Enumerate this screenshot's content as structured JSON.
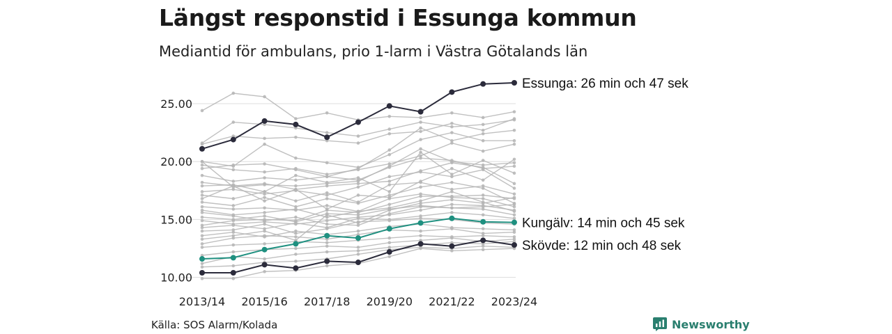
{
  "header": {
    "title": "Längst responstid i Essunga kommun",
    "subtitle": "Mediantid för ambulans, prio 1-larm i Västra Götalands län"
  },
  "footer": {
    "source": "Källa: SOS Alarm/Kolada",
    "brand_name": "Newsworthy",
    "brand_icon": "newsworthy-logo-icon",
    "brand_color": "#2a7f6f"
  },
  "chart_data": {
    "type": "line",
    "x": [
      "2013/14",
      "2014/15",
      "2015/16",
      "2016/17",
      "2017/18",
      "2018/19",
      "2019/20",
      "2020/21",
      "2021/22",
      "2022/23",
      "2023/24"
    ],
    "xticks": [
      "2013/14",
      "2015/16",
      "2017/18",
      "2019/20",
      "2021/22",
      "2023/24"
    ],
    "yticks": [
      "10.00",
      "15.00",
      "20.00",
      "25.00"
    ],
    "ylim": [
      9.8,
      26.8
    ],
    "grid": "horizontal",
    "highlighted": [
      {
        "name": "Essunga",
        "color": "#2b2b3b",
        "label": "Essunga: 26 min och 47 sek",
        "values": [
          21.1,
          21.9,
          23.5,
          23.2,
          22.1,
          23.4,
          24.8,
          24.3,
          26.0,
          26.7,
          26.8
        ]
      },
      {
        "name": "Kungälv",
        "color": "#1f9080",
        "label": "Kungälv: 14 min och 45 sek",
        "values": [
          11.6,
          11.7,
          12.4,
          12.9,
          13.6,
          13.4,
          14.2,
          14.7,
          15.1,
          14.8,
          14.75
        ]
      },
      {
        "name": "Skövde",
        "color": "#2b2b3b",
        "label": "Skövde: 12 min och 48 sek",
        "values": [
          10.4,
          10.4,
          11.1,
          10.8,
          11.4,
          11.3,
          12.2,
          12.9,
          12.7,
          13.2,
          12.8
        ]
      }
    ],
    "background_color": "#b5b5b5",
    "background_series": [
      [
        24.4,
        25.9,
        25.6,
        23.7,
        24.2,
        23.6,
        23.9,
        23.8,
        24.2,
        23.8,
        24.3
      ],
      [
        21.6,
        23.4,
        23.2,
        22.9,
        22.5,
        22.2,
        22.8,
        23.4,
        23.0,
        23.2,
        23.6
      ],
      [
        21.5,
        22.2,
        22.0,
        22.1,
        21.8,
        21.6,
        22.4,
        22.6,
        23.3,
        22.7,
        23.7
      ],
      [
        20.0,
        19.6,
        21.5,
        20.3,
        19.9,
        19.5,
        20.6,
        21.9,
        22.5,
        21.8,
        21.8
      ],
      [
        19.4,
        19.7,
        19.8,
        19.3,
        18.7,
        19.4,
        21.0,
        22.9,
        21.8,
        22.4,
        22.7
      ],
      [
        19.7,
        19.3,
        19.1,
        19.4,
        18.9,
        19.3,
        19.8,
        20.5,
        21.6,
        20.9,
        21.5
      ],
      [
        18.8,
        18.3,
        18.6,
        18.4,
        18.7,
        18.4,
        19.5,
        20.3,
        20.1,
        19.4,
        19.6
      ],
      [
        18.2,
        17.9,
        18.1,
        17.6,
        17.9,
        18.1,
        18.3,
        19.2,
        19.9,
        19.5,
        18.1
      ],
      [
        17.4,
        17.6,
        17.2,
        17.5,
        17.1,
        17.8,
        18.7,
        19.1,
        18.7,
        19.3,
        17.7
      ],
      [
        17.1,
        16.8,
        17.4,
        16.6,
        17.3,
        16.5,
        18.0,
        18.2,
        17.6,
        17.9,
        17.2
      ],
      [
        16.5,
        16.2,
        16.9,
        16.1,
        16.8,
        16.4,
        17.1,
        17.8,
        18.2,
        17.7,
        16.4
      ],
      [
        16.1,
        15.9,
        16.0,
        15.8,
        16.2,
        15.7,
        16.8,
        17.2,
        16.9,
        16.8,
        16.1
      ],
      [
        15.8,
        15.4,
        15.6,
        15.9,
        15.2,
        15.7,
        16.0,
        16.6,
        17.4,
        16.5,
        15.7
      ],
      [
        15.2,
        15.0,
        15.3,
        14.8,
        15.5,
        15.4,
        15.9,
        16.2,
        16.0,
        15.9,
        15.4
      ],
      [
        14.9,
        14.6,
        14.8,
        14.6,
        14.9,
        15.2,
        15.4,
        15.8,
        16.3,
        16.2,
        15.8
      ],
      [
        14.3,
        14.5,
        14.2,
        14.7,
        14.3,
        15.1,
        15.0,
        15.3,
        15.6,
        15.4,
        15.1
      ],
      [
        14.0,
        14.1,
        14.6,
        13.8,
        14.2,
        14.8,
        14.9,
        15.1,
        15.0,
        14.7,
        14.6
      ],
      [
        13.6,
        13.9,
        13.5,
        14.0,
        13.7,
        14.0,
        14.4,
        14.6,
        14.3,
        14.2,
        14.1
      ],
      [
        12.9,
        13.4,
        13.6,
        13.5,
        13.3,
        13.7,
        14.1,
        14.0,
        14.2,
        13.8,
        13.9
      ],
      [
        12.6,
        12.8,
        12.9,
        13.1,
        13.0,
        13.2,
        13.4,
        13.6,
        13.5,
        13.6,
        13.5
      ],
      [
        11.9,
        12.2,
        12.4,
        12.5,
        12.7,
        12.6,
        13.0,
        13.2,
        13.4,
        13.1,
        13.3
      ],
      [
        11.2,
        11.8,
        11.6,
        12.0,
        12.2,
        12.3,
        12.6,
        12.8,
        13.0,
        12.9,
        13.1
      ],
      [
        10.9,
        11.0,
        11.3,
        11.4,
        11.6,
        12.0,
        12.4,
        12.6,
        12.5,
        12.7,
        12.6
      ],
      [
        9.9,
        9.9,
        10.5,
        10.6,
        11.0,
        11.2,
        11.8,
        12.5,
        12.3,
        12.4,
        12.5
      ],
      [
        17.9,
        18.0,
        17.4,
        18.8,
        18.2,
        18.6,
        17.4,
        20.8,
        18.9,
        20.1,
        19.0
      ],
      [
        16.8,
        17.9,
        16.6,
        17.6,
        15.9,
        17.1,
        16.9,
        18.3,
        19.4,
        18.4,
        20.2
      ],
      [
        20.0,
        17.8,
        18.0,
        17.9,
        18.1,
        18.3,
        19.6,
        21.1,
        20.0,
        19.7,
        19.9
      ],
      [
        14.5,
        14.9,
        15.0,
        14.9,
        15.8,
        15.6,
        16.3,
        17.0,
        17.0,
        17.1,
        16.8
      ],
      [
        13.3,
        13.6,
        14.0,
        13.2,
        15.4,
        14.7,
        15.8,
        16.4,
        16.7,
        16.4,
        16.9
      ],
      [
        15.6,
        15.3,
        14.9,
        15.2,
        14.6,
        14.5,
        15.5,
        16.1,
        16.0,
        16.1,
        16.3
      ]
    ]
  }
}
